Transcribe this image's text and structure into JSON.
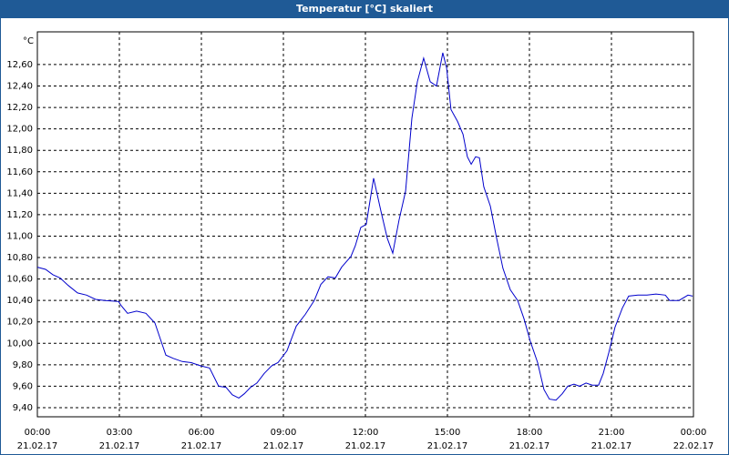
{
  "chart_data": {
    "type": "line",
    "title": "Temperatur [°C] skaliert",
    "y_unit": "°C",
    "x": [
      0.0,
      0.3,
      0.57,
      0.83,
      1.13,
      1.47,
      1.8,
      2.13,
      2.47,
      2.97,
      3.07,
      3.3,
      3.63,
      3.97,
      4.3,
      4.5,
      4.7,
      4.97,
      5.3,
      5.63,
      5.97,
      6.3,
      6.63,
      6.9,
      7.13,
      7.37,
      7.57,
      7.8,
      8.03,
      8.3,
      8.57,
      8.8,
      9.13,
      9.47,
      9.8,
      10.13,
      10.37,
      10.63,
      10.9,
      11.13,
      11.47,
      11.63,
      11.83,
      12.03,
      12.3,
      12.57,
      12.8,
      13.0,
      13.23,
      13.47,
      13.7,
      13.9,
      14.13,
      14.37,
      14.6,
      14.83,
      14.97,
      15.13,
      15.37,
      15.57,
      15.73,
      15.87,
      16.03,
      16.17,
      16.33,
      16.57,
      16.8,
      17.03,
      17.3,
      17.57,
      17.8,
      18.03,
      18.3,
      18.53,
      18.73,
      18.97,
      19.2,
      19.4,
      19.63,
      19.83,
      20.07,
      20.3,
      20.53,
      20.7,
      20.9,
      21.13,
      21.4,
      21.63,
      21.97,
      22.3,
      22.63,
      22.97,
      23.13,
      23.47,
      23.8,
      23.97
    ],
    "series": [
      {
        "color": "#0000cc",
        "values": [
          10.71,
          10.69,
          10.64,
          10.61,
          10.54,
          10.47,
          10.45,
          10.41,
          10.4,
          10.39,
          10.35,
          10.28,
          10.3,
          10.28,
          10.19,
          10.04,
          9.89,
          9.86,
          9.83,
          9.82,
          9.79,
          9.77,
          9.6,
          9.59,
          9.52,
          9.49,
          9.53,
          9.59,
          9.63,
          9.72,
          9.79,
          9.82,
          9.93,
          10.16,
          10.27,
          10.4,
          10.55,
          10.62,
          10.61,
          10.71,
          10.81,
          10.91,
          11.08,
          11.11,
          11.54,
          11.23,
          10.98,
          10.84,
          11.15,
          11.42,
          12.1,
          12.44,
          12.66,
          12.44,
          12.4,
          12.71,
          12.57,
          12.18,
          12.07,
          11.95,
          11.74,
          11.67,
          11.74,
          11.73,
          11.46,
          11.28,
          10.98,
          10.7,
          10.5,
          10.4,
          10.23,
          10.02,
          9.82,
          9.57,
          9.48,
          9.47,
          9.53,
          9.6,
          9.62,
          9.6,
          9.63,
          9.61,
          9.61,
          9.72,
          9.91,
          10.15,
          10.33,
          10.44,
          10.45,
          10.45,
          10.46,
          10.45,
          10.4,
          10.4,
          10.45,
          10.44
        ]
      }
    ],
    "xlim": [
      0,
      24
    ],
    "xticks": [
      {
        "value": 0,
        "label": [
          "00:00",
          "21.02.17"
        ]
      },
      {
        "value": 3,
        "label": [
          "03:00",
          "21.02.17"
        ]
      },
      {
        "value": 6,
        "label": [
          "06:00",
          "21.02.17"
        ]
      },
      {
        "value": 9,
        "label": [
          "09:00",
          "21.02.17"
        ]
      },
      {
        "value": 12,
        "label": [
          "12:00",
          "21.02.17"
        ]
      },
      {
        "value": 15,
        "label": [
          "15:00",
          "21.02.17"
        ]
      },
      {
        "value": 18,
        "label": [
          "18:00",
          "21.02.17"
        ]
      },
      {
        "value": 21,
        "label": [
          "21:00",
          "21.02.17"
        ]
      },
      {
        "value": 24,
        "label": [
          "00:00",
          "22.02.17"
        ]
      }
    ],
    "ylim": [
      9.315,
      12.905
    ],
    "yticks": [
      {
        "value": 9.4,
        "label": "9,40"
      },
      {
        "value": 9.6,
        "label": "9,60"
      },
      {
        "value": 9.8,
        "label": "9,80"
      },
      {
        "value": 10.0,
        "label": "10,00"
      },
      {
        "value": 10.2,
        "label": "10,20"
      },
      {
        "value": 10.4,
        "label": "10,40"
      },
      {
        "value": 10.6,
        "label": "10,60"
      },
      {
        "value": 10.8,
        "label": "10,80"
      },
      {
        "value": 11.0,
        "label": "11,00"
      },
      {
        "value": 11.2,
        "label": "11,20"
      },
      {
        "value": 11.4,
        "label": "11,40"
      },
      {
        "value": 11.6,
        "label": "11,60"
      },
      {
        "value": 11.8,
        "label": "11,80"
      },
      {
        "value": 12.0,
        "label": "12,00"
      },
      {
        "value": 12.2,
        "label": "12,20"
      },
      {
        "value": 12.4,
        "label": "12,40"
      },
      {
        "value": 12.6,
        "label": "12,60"
      }
    ],
    "grid": true
  }
}
